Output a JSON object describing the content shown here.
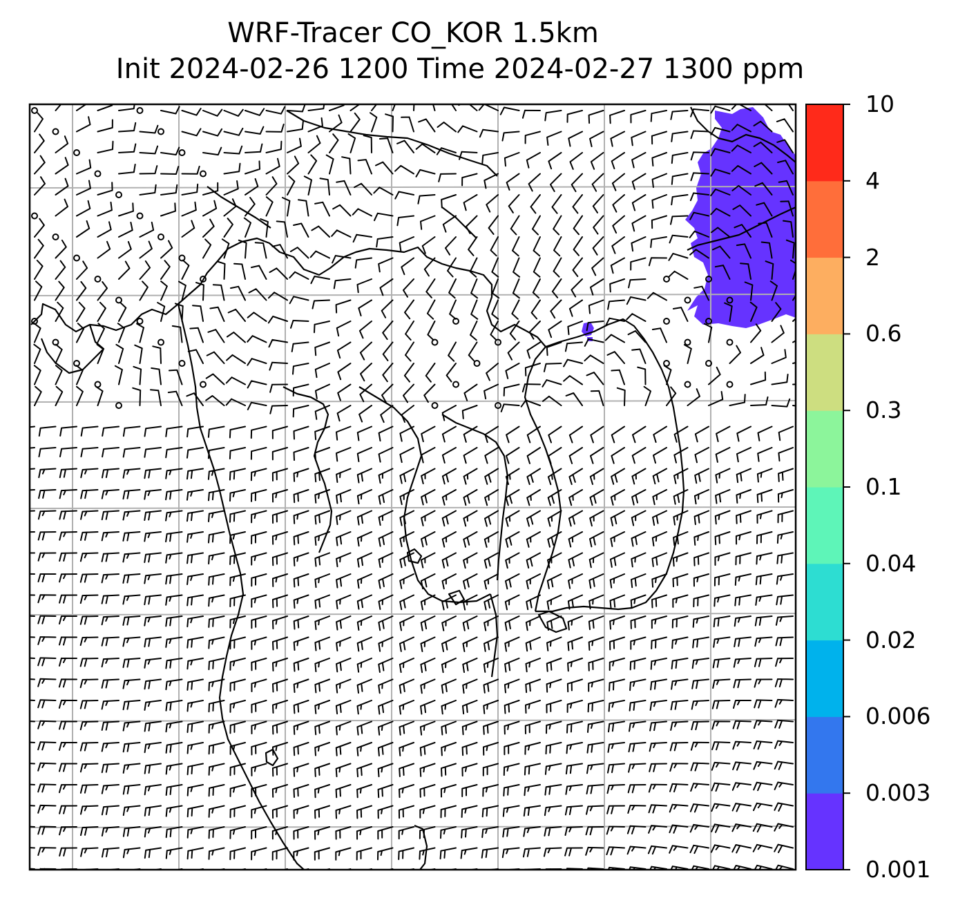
{
  "title": {
    "line1": "WRF-Tracer CO_KOR 1.5km",
    "line2": "Init 2024-02-26 1200 Time 2024-02-27 1300 ppm"
  },
  "colorbar": {
    "levels": [
      "0.001",
      "0.003",
      "0.006",
      "0.02",
      "0.04",
      "0.1",
      "0.3",
      "0.6",
      "2",
      "4",
      "10"
    ],
    "colors": [
      "#6633ff",
      "#3377ee",
      "#00b2ec",
      "#2dddd2",
      "#5ef5b8",
      "#8cf59b",
      "#cdde80",
      "#fdae60",
      "#ff6e3a",
      "#ff2a1a"
    ]
  },
  "map": {
    "tracer_color": "#6633ff",
    "coastline_color": "#000000",
    "gridline_color": "#b0b0b0",
    "barb_color": "#000000"
  }
}
